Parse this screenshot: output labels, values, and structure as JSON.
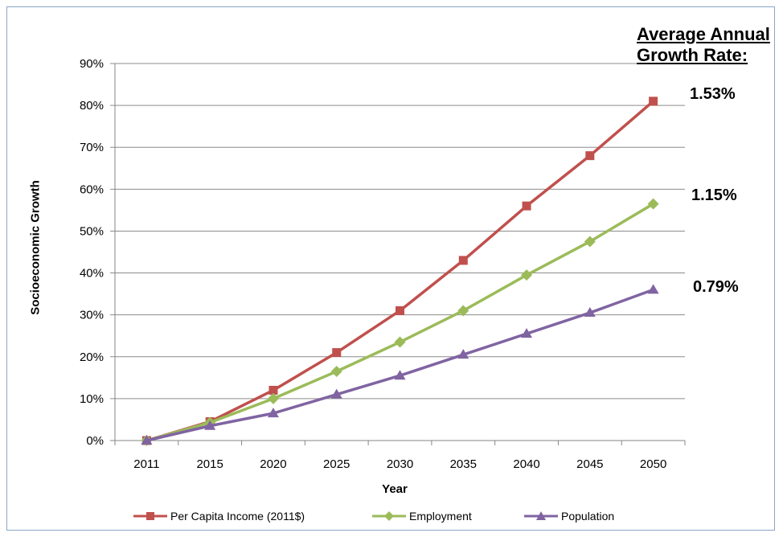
{
  "annotation": {
    "line1": "Average Annual",
    "line2": "Growth Rate:"
  },
  "rates": [
    {
      "label": "1.53%",
      "series": "Per Capita Income (2011$)"
    },
    {
      "label": "1.15%",
      "series": "Employment"
    },
    {
      "label": "0.79%",
      "series": "Population"
    }
  ],
  "chart_data": {
    "type": "line",
    "title": "",
    "xlabel": "Year",
    "ylabel": "Socioeconomic Growth",
    "categories": [
      "2011",
      "2015",
      "2020",
      "2025",
      "2030",
      "2035",
      "2040",
      "2045",
      "2050"
    ],
    "ylim": [
      0,
      0.9
    ],
    "yticks": [
      "0%",
      "10%",
      "20%",
      "30%",
      "40%",
      "50%",
      "60%",
      "70%",
      "80%",
      "90%"
    ],
    "grid": true,
    "legend_position": "bottom",
    "series": [
      {
        "name": "Per Capita Income (2011$)",
        "color": "#c0504d",
        "marker": "square",
        "values": [
          0.0,
          0.045,
          0.12,
          0.21,
          0.31,
          0.43,
          0.56,
          0.68,
          0.81
        ]
      },
      {
        "name": "Employment",
        "color": "#9bbb59",
        "marker": "diamond",
        "values": [
          0.0,
          0.043,
          0.1,
          0.165,
          0.235,
          0.31,
          0.395,
          0.475,
          0.565
        ]
      },
      {
        "name": "Population",
        "color": "#8064a2",
        "marker": "triangle",
        "values": [
          0.0,
          0.035,
          0.065,
          0.11,
          0.155,
          0.205,
          0.255,
          0.305,
          0.36
        ]
      }
    ]
  }
}
